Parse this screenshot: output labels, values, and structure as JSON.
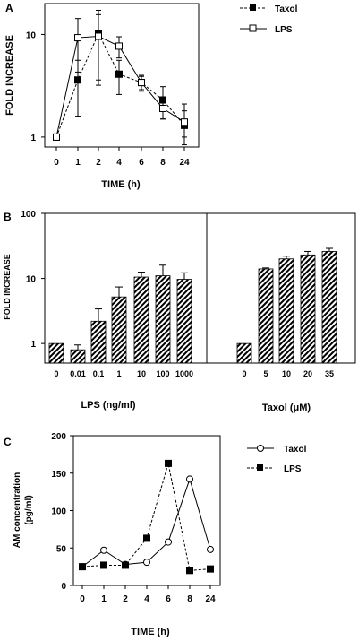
{
  "chart_data": [
    {
      "panel": "A",
      "type": "line",
      "y_scale": "log",
      "ylim": [
        0.8,
        20
      ],
      "xlabel": "TIME  (h)",
      "ylabel": "FOLD  INCREASE",
      "x": [
        "0",
        "1",
        "2",
        "4",
        "6",
        "8",
        "24"
      ],
      "y_ticks": [
        "1",
        "10"
      ],
      "legend_placement": "top-right",
      "series": [
        {
          "name": "Taxol",
          "style": "dashed",
          "marker": "filled-square",
          "values": [
            1.0,
            3.6,
            10.2,
            4.1,
            3.4,
            2.3,
            1.3
          ],
          "err": [
            0,
            2.0,
            7.0,
            1.5,
            0.6,
            0.8,
            0.8
          ]
        },
        {
          "name": "LPS",
          "style": "solid",
          "marker": "open-square",
          "values": [
            1.0,
            9.3,
            9.6,
            7.7,
            3.4,
            1.9,
            1.4
          ],
          "err": [
            0,
            5.0,
            6.0,
            1.8,
            0.5,
            0.4,
            0.4
          ]
        }
      ]
    },
    {
      "panel": "B",
      "type": "bar",
      "y_scale": "log",
      "ylim": [
        0.5,
        100
      ],
      "ylabel": "FOLD INCREASE",
      "y_ticks": [
        "1",
        "10",
        "100"
      ],
      "groups": [
        {
          "xlabel": "LPS  (ng/ml)",
          "categories": [
            "0",
            "0.01",
            "0.1",
            "1",
            "10",
            "100",
            "1000"
          ],
          "values": [
            1.0,
            0.8,
            2.2,
            5.2,
            10.5,
            11.0,
            9.7
          ],
          "err": [
            0,
            0.15,
            1.2,
            2.2,
            2.0,
            5.0,
            2.5
          ]
        },
        {
          "xlabel": "Taxol (μM)",
          "categories": [
            "0",
            "5",
            "10",
            "20",
            "35"
          ],
          "values": [
            1.0,
            14.0,
            20.0,
            23.0,
            26.0
          ],
          "err": [
            0,
            0.5,
            2.0,
            3.0,
            3.0
          ]
        }
      ]
    },
    {
      "panel": "C",
      "type": "line",
      "ylim": [
        0,
        200
      ],
      "xlabel": "TIME  (h)",
      "ylabel": [
        "AM  concentration",
        "(pg/ml)"
      ],
      "x": [
        "0",
        "1",
        "2",
        "4",
        "6",
        "8",
        "24"
      ],
      "y_ticks": [
        "0",
        "50",
        "100",
        "150",
        "200"
      ],
      "legend_placement": "top-right",
      "series": [
        {
          "name": "Taxol",
          "style": "solid",
          "marker": "open-circle",
          "values": [
            25,
            47,
            28,
            31,
            58,
            142,
            48
          ]
        },
        {
          "name": "LPS",
          "style": "dashed",
          "marker": "filled-square",
          "values": [
            25,
            27,
            27,
            63,
            163,
            20,
            22
          ]
        }
      ]
    }
  ]
}
